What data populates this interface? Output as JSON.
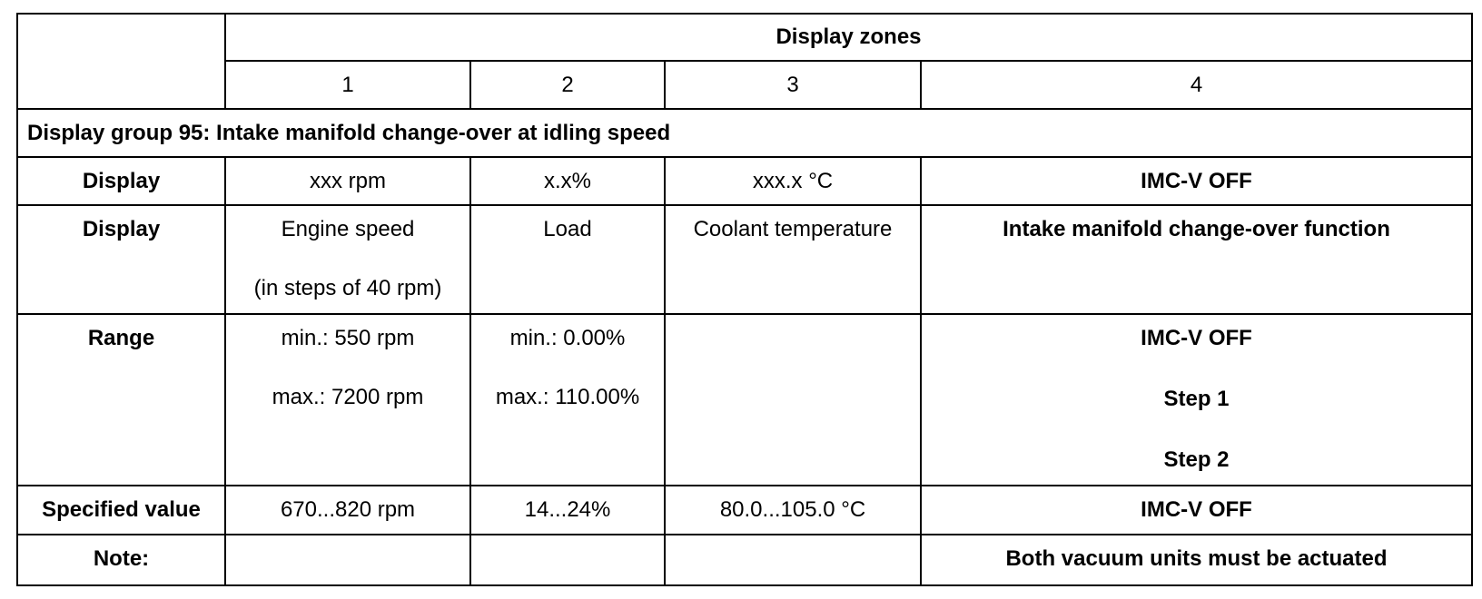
{
  "table": {
    "zones_header": "Display zones",
    "zone_numbers": [
      "1",
      "2",
      "3",
      "4"
    ],
    "group_title": "Display group 95: Intake manifold change-over at idling speed",
    "rows": {
      "display_format": {
        "label": "Display",
        "zone1": "xxx rpm",
        "zone2": "x.x%",
        "zone3": "xxx.x °C",
        "zone4": "IMC-V OFF"
      },
      "display_meaning": {
        "label": "Display",
        "zone1_line1": "Engine speed",
        "zone1_line2": "(in steps of 40 rpm)",
        "zone2": "Load",
        "zone3": "Coolant temperature",
        "zone4": "Intake manifold change-over function"
      },
      "range": {
        "label": "Range",
        "zone1_min": "min.: 550 rpm",
        "zone1_max": "max.: 7200 rpm",
        "zone2_min": "min.: 0.00%",
        "zone2_max": "max.: 110.00%",
        "zone3": "",
        "zone4_line1": "IMC-V OFF",
        "zone4_line2": "Step 1",
        "zone4_line3": "Step 2"
      },
      "specified": {
        "label": "Specified value",
        "zone1": "670...820 rpm",
        "zone2": "14...24%",
        "zone3": "80.0...105.0 °C",
        "zone4": "IMC-V OFF"
      },
      "note": {
        "label": "Note:",
        "zone1": "",
        "zone2": "",
        "zone3": "",
        "zone4": "Both vacuum units must be actuated"
      }
    }
  }
}
